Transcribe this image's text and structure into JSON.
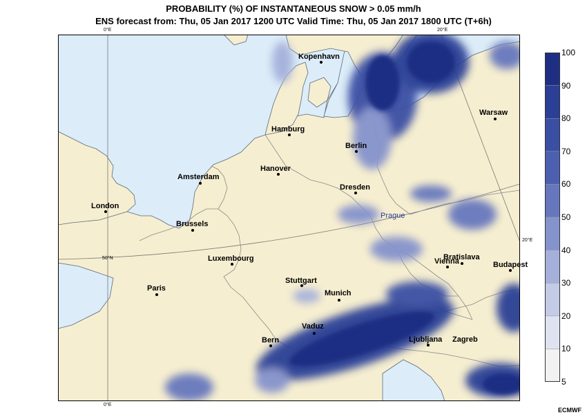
{
  "header": {
    "title": "PROBABILITY (%) OF INSTANTANEOUS SNOW > 0.05 mm/h",
    "subtitle": "ENS forecast from: Thu, 05 Jan 2017 1200 UTC   Valid Time: Thu, 05 Jan 2017 1800 UTC (T+6h)"
  },
  "map": {
    "gridlines": [
      "0°E",
      "0°E",
      "20°E",
      "20°E",
      "50°N"
    ],
    "cities": [
      {
        "name": "Kopenhavn"
      },
      {
        "name": "Hamburg"
      },
      {
        "name": "Berlin"
      },
      {
        "name": "Warsaw"
      },
      {
        "name": "Amsterdam"
      },
      {
        "name": "Hanover"
      },
      {
        "name": "Dresden"
      },
      {
        "name": "London"
      },
      {
        "name": "Prague"
      },
      {
        "name": "Brussels"
      },
      {
        "name": "Luxembourg"
      },
      {
        "name": "Vienna"
      },
      {
        "name": "Bratislava"
      },
      {
        "name": "Budapest"
      },
      {
        "name": "Paris"
      },
      {
        "name": "Stuttgart"
      },
      {
        "name": "Munich"
      },
      {
        "name": "Vaduz"
      },
      {
        "name": "Bern"
      },
      {
        "name": "Ljubljana"
      },
      {
        "name": "Zagreb"
      }
    ],
    "colors": {
      "land": "#f6eed0",
      "sea": "#dcecf8",
      "border": "#8a8a8a",
      "coast": "#5a6a7a"
    }
  },
  "colorbar": {
    "levels": [
      "5",
      "10",
      "20",
      "30",
      "40",
      "50",
      "60",
      "70",
      "80",
      "90",
      "100"
    ],
    "colors": [
      "#f2f2f2",
      "#dfe3f1",
      "#c4cbe6",
      "#a5b0da",
      "#8593cc",
      "#6677bd",
      "#4d60b0",
      "#3a4fa4",
      "#2b3f96",
      "#1e2f83"
    ]
  },
  "credit": "ECMWF"
}
